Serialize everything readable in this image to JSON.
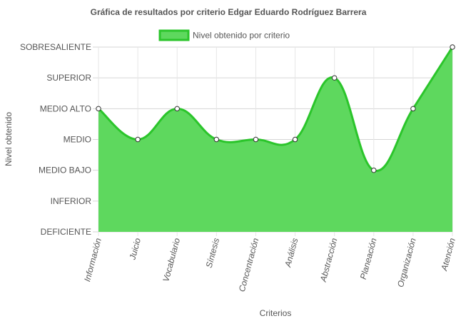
{
  "chart_data": {
    "type": "area",
    "title": "Gráfica de resultados por criterio Edgar Eduardo Rodríguez Barrera",
    "xlabel": "Criterios",
    "ylabel": "Nivel obtenido",
    "levels": [
      "DEFICIENTE",
      "INFERIOR",
      "MEDIO BAJO",
      "MEDIO",
      "MEDIO ALTO",
      "SUPERIOR",
      "SOBRESALIENTE"
    ],
    "ylim": [
      0,
      6
    ],
    "grid": true,
    "legend_position": "top",
    "categories": [
      "Información",
      "Juicio",
      "Vocabulario",
      "Síntesis",
      "Concentración",
      "Análisis",
      "Abstracción",
      "Planeación",
      "Organización",
      "Atención"
    ],
    "series": [
      {
        "name": "Nivel obtenido por criterio",
        "values": [
          "MEDIO ALTO",
          "MEDIO",
          "MEDIO ALTO",
          "MEDIO",
          "MEDIO",
          "MEDIO",
          "SUPERIOR",
          "MEDIO BAJO",
          "MEDIO ALTO",
          "SOBRESALIENTE"
        ],
        "color": "#2bc52b",
        "fill": "#5ed85e"
      }
    ]
  }
}
